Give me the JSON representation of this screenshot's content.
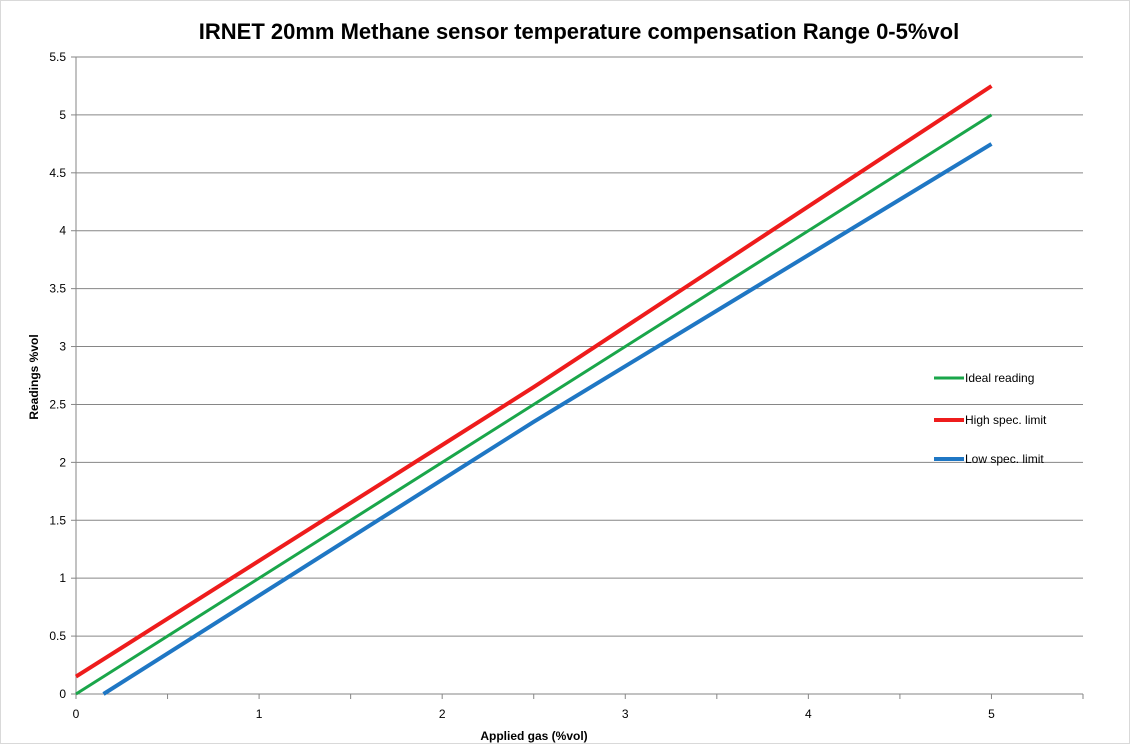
{
  "chart_data": {
    "type": "line",
    "title": "IRNET 20mm Methane sensor temperature compensation Range 0-5%vol",
    "xlabel": "Applied gas (%vol)",
    "ylabel": "Readings %vol",
    "xlim": [
      0,
      5.5
    ],
    "ylim": [
      0,
      5.5
    ],
    "x_ticks": [
      "0",
      "1",
      "2",
      "3",
      "4",
      "5"
    ],
    "y_ticks": [
      "0",
      "0.5",
      "1",
      "1.5",
      "2",
      "2.5",
      "3",
      "3.5",
      "4",
      "4.5",
      "5",
      "5.5"
    ],
    "grid": "horizontal",
    "legend_position": "right",
    "series": [
      {
        "name": "Ideal reading",
        "color": "#1aa64a",
        "points": [
          [
            0,
            0
          ],
          [
            5,
            5
          ]
        ]
      },
      {
        "name": "High spec. limit",
        "color": "#ee1c1c",
        "points": [
          [
            0,
            0.15
          ],
          [
            2,
            2.15
          ],
          [
            2.5,
            2.65
          ],
          [
            5,
            5.25
          ]
        ]
      },
      {
        "name": "Low spec. limit",
        "color": "#1f77c4",
        "points": [
          [
            0.15,
            0
          ],
          [
            2,
            1.85
          ],
          [
            2.5,
            2.35
          ],
          [
            5,
            4.75
          ]
        ]
      }
    ]
  }
}
